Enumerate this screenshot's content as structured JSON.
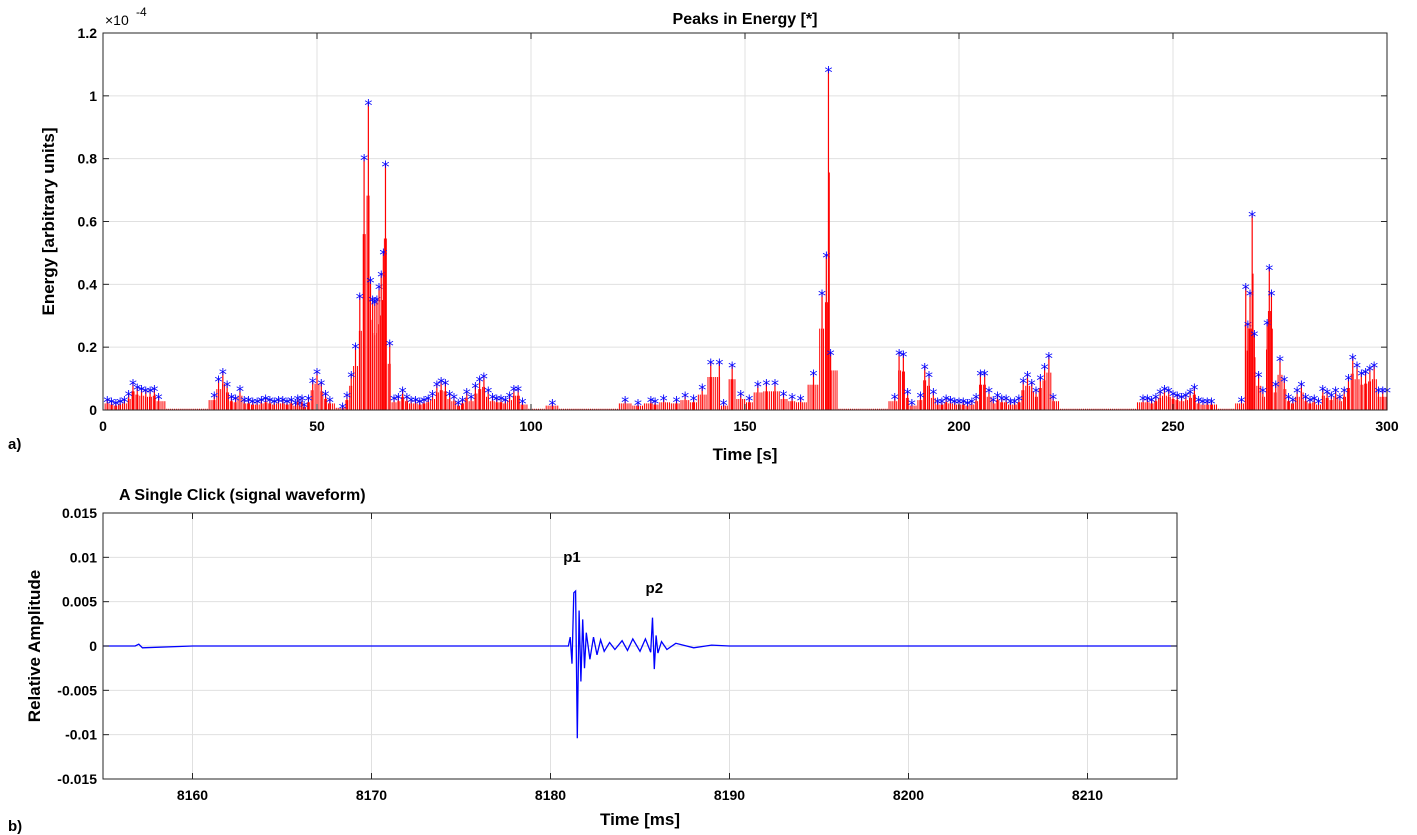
{
  "panel_labels": {
    "a": "a)",
    "b": "b)"
  },
  "colors": {
    "stem": "#ff0000",
    "marker": "#0000ff",
    "waveform": "#0000ff",
    "grid": "#e0e0e0",
    "axis": "#262626"
  },
  "chart_data": [
    {
      "type": "stem",
      "title": "Peaks in Energy [*]",
      "xlabel": "Time [s]",
      "ylabel": "Energy [arbitrary units]",
      "exponent_label": "×10",
      "exponent_power": "-4",
      "xlim": [
        0,
        300
      ],
      "ylim": [
        0,
        1.2
      ],
      "y_scale": "x1e-4",
      "grid": true,
      "marker": "*",
      "xticks": [
        0,
        50,
        100,
        150,
        200,
        250,
        300
      ],
      "yticks": [
        0,
        0.2,
        0.4,
        0.6,
        0.8,
        1,
        1.2
      ],
      "xtick_labels": [
        "0",
        "50",
        "100",
        "150",
        "200",
        "250",
        "300"
      ],
      "ytick_labels": [
        "0",
        "0.2",
        "0.4",
        "0.6",
        "0.8",
        "1",
        "1.2"
      ],
      "marked_peaks": [
        [
          1,
          0.03
        ],
        [
          2,
          0.025
        ],
        [
          3,
          0.02
        ],
        [
          4,
          0.025
        ],
        [
          5,
          0.03
        ],
        [
          6,
          0.05
        ],
        [
          7,
          0.085
        ],
        [
          8,
          0.07
        ],
        [
          9,
          0.065
        ],
        [
          10,
          0.06
        ],
        [
          11,
          0.06
        ],
        [
          12,
          0.065
        ],
        [
          13,
          0.04
        ],
        [
          26,
          0.045
        ],
        [
          27,
          0.095
        ],
        [
          28,
          0.12
        ],
        [
          29,
          0.08
        ],
        [
          30,
          0.04
        ],
        [
          31,
          0.035
        ],
        [
          32,
          0.065
        ],
        [
          33,
          0.03
        ],
        [
          34,
          0.03
        ],
        [
          35,
          0.025
        ],
        [
          36,
          0.025
        ],
        [
          37,
          0.03
        ],
        [
          38,
          0.035
        ],
        [
          39,
          0.03
        ],
        [
          40,
          0.025
        ],
        [
          41,
          0.03
        ],
        [
          42,
          0.03
        ],
        [
          43,
          0.025
        ],
        [
          44,
          0.03
        ],
        [
          45,
          0.02
        ],
        [
          46,
          0.02
        ],
        [
          47,
          0.015
        ],
        [
          45.5,
          0.035
        ],
        [
          46.5,
          0.035
        ],
        [
          48,
          0.035
        ],
        [
          49,
          0.09
        ],
        [
          50,
          0.12
        ],
        [
          51,
          0.085
        ],
        [
          52,
          0.05
        ],
        [
          53,
          0.03
        ],
        [
          56,
          0.01
        ],
        [
          57,
          0.045
        ],
        [
          58,
          0.11
        ],
        [
          59,
          0.2
        ],
        [
          60,
          0.36
        ],
        [
          61,
          0.8
        ],
        [
          62,
          0.975
        ],
        [
          62.5,
          0.41
        ],
        [
          63,
          0.35
        ],
        [
          63.5,
          0.34
        ],
        [
          64,
          0.35
        ],
        [
          64.5,
          0.39
        ],
        [
          65,
          0.43
        ],
        [
          65.5,
          0.5
        ],
        [
          66,
          0.78
        ],
        [
          67,
          0.21
        ],
        [
          68,
          0.035
        ],
        [
          69,
          0.04
        ],
        [
          70,
          0.06
        ],
        [
          71,
          0.04
        ],
        [
          72,
          0.03
        ],
        [
          73,
          0.03
        ],
        [
          74,
          0.025
        ],
        [
          75,
          0.03
        ],
        [
          76,
          0.035
        ],
        [
          77,
          0.05
        ],
        [
          78,
          0.08
        ],
        [
          79,
          0.09
        ],
        [
          80,
          0.085
        ],
        [
          81,
          0.05
        ],
        [
          82,
          0.04
        ],
        [
          83,
          0.02
        ],
        [
          84,
          0.03
        ],
        [
          85,
          0.055
        ],
        [
          86,
          0.04
        ],
        [
          87,
          0.075
        ],
        [
          88,
          0.095
        ],
        [
          89,
          0.105
        ],
        [
          90,
          0.06
        ],
        [
          91,
          0.04
        ],
        [
          92,
          0.035
        ],
        [
          93,
          0.035
        ],
        [
          94,
          0.03
        ],
        [
          95,
          0.045
        ],
        [
          96,
          0.065
        ],
        [
          97,
          0.065
        ],
        [
          98,
          0.025
        ],
        [
          105,
          0.02
        ],
        [
          122,
          0.03
        ],
        [
          125,
          0.02
        ],
        [
          128,
          0.03
        ],
        [
          129,
          0.025
        ],
        [
          131,
          0.035
        ],
        [
          134,
          0.03
        ],
        [
          136,
          0.045
        ],
        [
          138,
          0.035
        ],
        [
          140,
          0.07
        ],
        [
          142,
          0.15
        ],
        [
          144,
          0.15
        ],
        [
          145,
          0.02
        ],
        [
          147,
          0.14
        ],
        [
          149,
          0.05
        ],
        [
          151,
          0.035
        ],
        [
          153,
          0.08
        ],
        [
          155,
          0.085
        ],
        [
          157,
          0.085
        ],
        [
          159,
          0.05
        ],
        [
          161,
          0.04
        ],
        [
          163,
          0.035
        ],
        [
          166,
          0.115
        ],
        [
          168,
          0.37
        ],
        [
          169,
          0.49
        ],
        [
          169.5,
          1.08
        ],
        [
          170,
          0.18
        ],
        [
          185,
          0.04
        ],
        [
          186,
          0.18
        ],
        [
          187,
          0.175
        ],
        [
          188,
          0.055
        ],
        [
          189,
          0.02
        ],
        [
          191,
          0.045
        ],
        [
          192,
          0.135
        ],
        [
          193,
          0.11
        ],
        [
          194,
          0.055
        ],
        [
          195,
          0.025
        ],
        [
          196,
          0.025
        ],
        [
          197,
          0.035
        ],
        [
          198,
          0.03
        ],
        [
          199,
          0.025
        ],
        [
          200,
          0.025
        ],
        [
          201,
          0.025
        ],
        [
          202,
          0.02
        ],
        [
          203,
          0.025
        ],
        [
          204,
          0.04
        ],
        [
          205,
          0.115
        ],
        [
          206,
          0.115
        ],
        [
          207,
          0.06
        ],
        [
          208,
          0.03
        ],
        [
          209,
          0.045
        ],
        [
          210,
          0.035
        ],
        [
          211,
          0.035
        ],
        [
          212,
          0.025
        ],
        [
          213,
          0.025
        ],
        [
          214,
          0.035
        ],
        [
          215,
          0.09
        ],
        [
          216,
          0.11
        ],
        [
          217,
          0.085
        ],
        [
          218,
          0.06
        ],
        [
          219,
          0.1
        ],
        [
          220,
          0.135
        ],
        [
          221,
          0.17
        ],
        [
          222,
          0.04
        ],
        [
          243,
          0.035
        ],
        [
          244,
          0.035
        ],
        [
          245,
          0.03
        ],
        [
          246,
          0.04
        ],
        [
          247,
          0.055
        ],
        [
          248,
          0.065
        ],
        [
          249,
          0.06
        ],
        [
          250,
          0.05
        ],
        [
          251,
          0.045
        ],
        [
          252,
          0.04
        ],
        [
          253,
          0.045
        ],
        [
          254,
          0.055
        ],
        [
          255,
          0.07
        ],
        [
          256,
          0.03
        ],
        [
          257,
          0.025
        ],
        [
          258,
          0.025
        ],
        [
          259,
          0.025
        ],
        [
          266,
          0.03
        ],
        [
          267,
          0.39
        ],
        [
          267.5,
          0.27
        ],
        [
          268,
          0.37
        ],
        [
          268.5,
          0.62
        ],
        [
          269,
          0.24
        ],
        [
          270,
          0.11
        ],
        [
          271,
          0.06
        ],
        [
          272,
          0.275
        ],
        [
          272.5,
          0.45
        ],
        [
          273,
          0.37
        ],
        [
          274,
          0.08
        ],
        [
          275,
          0.16
        ],
        [
          276,
          0.095
        ],
        [
          277,
          0.04
        ],
        [
          278,
          0.03
        ],
        [
          279,
          0.06
        ],
        [
          280,
          0.08
        ],
        [
          281,
          0.04
        ],
        [
          282,
          0.03
        ],
        [
          283,
          0.035
        ],
        [
          284,
          0.025
        ],
        [
          285,
          0.065
        ],
        [
          286,
          0.055
        ],
        [
          287,
          0.045
        ],
        [
          288,
          0.06
        ],
        [
          289,
          0.04
        ],
        [
          290,
          0.06
        ],
        [
          291,
          0.1
        ],
        [
          292,
          0.165
        ],
        [
          293,
          0.14
        ],
        [
          294,
          0.115
        ],
        [
          295,
          0.12
        ],
        [
          296,
          0.13
        ],
        [
          297,
          0.14
        ],
        [
          298,
          0.06
        ],
        [
          299,
          0.06
        ],
        [
          300,
          0.06
        ]
      ]
    },
    {
      "type": "line",
      "title": "A Single Click (signal waveform)",
      "xlabel": "Time [ms]",
      "ylabel": "Relative Amplitude",
      "xlim": [
        8155,
        8215
      ],
      "ylim": [
        -0.015,
        0.015
      ],
      "grid": true,
      "xticks": [
        8160,
        8170,
        8180,
        8190,
        8200,
        8210
      ],
      "yticks": [
        -0.015,
        -0.01,
        -0.005,
        0,
        0.005,
        0.01,
        0.015
      ],
      "xtick_labels": [
        "8160",
        "8170",
        "8180",
        "8190",
        "8200",
        "8210"
      ],
      "ytick_labels": [
        "-0.015",
        "-0.01",
        "-0.005",
        "0",
        "0.005",
        "0.01",
        "0.015"
      ],
      "series": [
        {
          "x": [
            8155,
            8156.8,
            8157,
            8157.2,
            8160,
            8180,
            8181,
            8181.1,
            8181.2,
            8181.3,
            8181.4,
            8181.5,
            8181.6,
            8181.7,
            8181.8,
            8181.9,
            8182,
            8182.2,
            8182.4,
            8182.6,
            8182.8,
            8183,
            8183.3,
            8183.6,
            8184,
            8184.3,
            8184.6,
            8185,
            8185.3,
            8185.6,
            8185.7,
            8185.8,
            8185.9,
            8186,
            8186.2,
            8186.5,
            8187,
            8188,
            8189,
            8190,
            8215
          ],
          "y": [
            0,
            0,
            0.0002,
            -0.0002,
            0,
            0,
            0,
            0.001,
            -0.002,
            0.006,
            0.0062,
            -0.0104,
            0.004,
            -0.004,
            0.003,
            -0.0025,
            0.0015,
            -0.0015,
            0.001,
            -0.001,
            0.0007,
            -0.0006,
            0.0004,
            -0.0004,
            0.0006,
            -0.0005,
            0.0008,
            -0.0006,
            0.0008,
            -0.0007,
            0.0032,
            -0.0026,
            0.0012,
            -0.0008,
            0.0005,
            -0.0004,
            0.0003,
            -0.0002,
            0.0001,
            0,
            0
          ]
        }
      ],
      "annotations": [
        {
          "text": "p1",
          "x": 8181.2,
          "y": 0.0095
        },
        {
          "text": "p2",
          "x": 8185.8,
          "y": 0.006
        }
      ]
    }
  ]
}
